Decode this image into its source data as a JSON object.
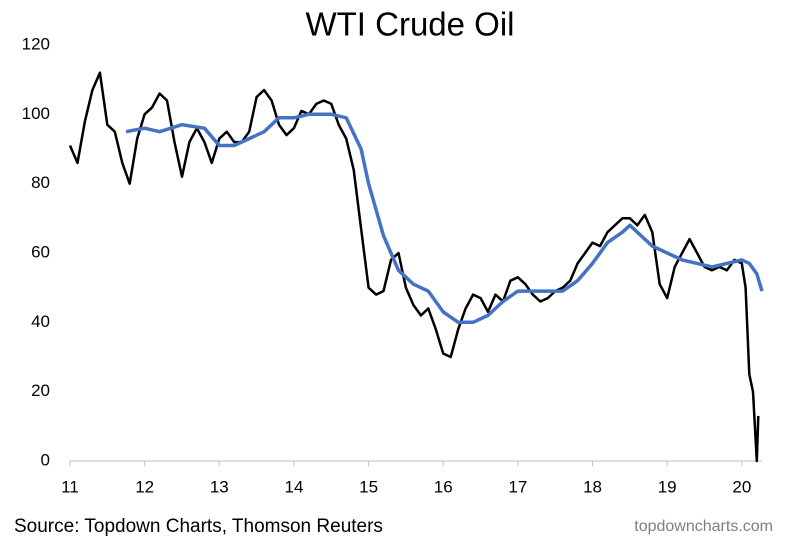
{
  "chart_data": {
    "type": "line",
    "title": "WTI Crude Oil",
    "source": "Source: Topdown Charts, Thomson Reuters",
    "watermark": "topdowncharts.com",
    "xlim": [
      11,
      20.27
    ],
    "xticks": [
      11,
      12,
      13,
      14,
      15,
      16,
      17,
      18,
      19,
      20
    ],
    "ylim": [
      0,
      120
    ],
    "yticks": [
      0,
      20,
      40,
      60,
      80,
      100,
      120
    ],
    "grid": false,
    "series": [
      {
        "color": "#000000",
        "x": [
          11.0,
          11.1,
          11.2,
          11.3,
          11.4,
          11.5,
          11.6,
          11.7,
          11.8,
          11.9,
          12.0,
          12.1,
          12.2,
          12.3,
          12.4,
          12.5,
          12.6,
          12.7,
          12.8,
          12.9,
          13.0,
          13.1,
          13.2,
          13.3,
          13.4,
          13.5,
          13.6,
          13.7,
          13.8,
          13.9,
          14.0,
          14.1,
          14.2,
          14.3,
          14.4,
          14.5,
          14.6,
          14.7,
          14.8,
          14.9,
          15.0,
          15.1,
          15.2,
          15.3,
          15.4,
          15.5,
          15.6,
          15.7,
          15.8,
          15.9,
          16.0,
          16.1,
          16.2,
          16.3,
          16.4,
          16.5,
          16.6,
          16.7,
          16.8,
          16.9,
          17.0,
          17.1,
          17.2,
          17.3,
          17.4,
          17.5,
          17.6,
          17.7,
          17.8,
          17.9,
          18.0,
          18.1,
          18.2,
          18.3,
          18.4,
          18.5,
          18.6,
          18.7,
          18.8,
          18.9,
          19.0,
          19.1,
          19.2,
          19.3,
          19.4,
          19.5,
          19.6,
          19.7,
          19.8,
          19.9,
          20.0,
          20.05,
          20.1,
          20.15,
          20.2,
          20.22
        ],
        "values": [
          91,
          86,
          98,
          107,
          112,
          97,
          95,
          86,
          80,
          93,
          100,
          102,
          106,
          104,
          92,
          82,
          92,
          96,
          92,
          86,
          93,
          95,
          92,
          92,
          95,
          105,
          107,
          104,
          97,
          94,
          96,
          101,
          100,
          103,
          104,
          103,
          97,
          93,
          84,
          67,
          50,
          48,
          49,
          58,
          60,
          50,
          45,
          42,
          44,
          38,
          31,
          30,
          38,
          44,
          48,
          47,
          43,
          48,
          46,
          52,
          53,
          51,
          48,
          46,
          47,
          49,
          50,
          52,
          57,
          60,
          63,
          62,
          66,
          68,
          70,
          70,
          68,
          71,
          66,
          51,
          47,
          56,
          60,
          64,
          60,
          56,
          55,
          56,
          55,
          58,
          57,
          50,
          25,
          20,
          0,
          13
        ]
      },
      {
        "color": "#4472c4",
        "x": [
          11.75,
          12.0,
          12.2,
          12.5,
          12.8,
          13.0,
          13.2,
          13.4,
          13.6,
          13.8,
          14.0,
          14.2,
          14.5,
          14.7,
          14.9,
          15.0,
          15.2,
          15.4,
          15.6,
          15.8,
          16.0,
          16.2,
          16.4,
          16.6,
          16.8,
          17.0,
          17.3,
          17.6,
          17.8,
          18.0,
          18.2,
          18.4,
          18.5,
          18.6,
          18.8,
          19.0,
          19.2,
          19.4,
          19.6,
          19.8,
          20.0,
          20.1,
          20.2,
          20.27
        ],
        "values": [
          95,
          96,
          95,
          97,
          96,
          91,
          91,
          93,
          95,
          99,
          99,
          100,
          100,
          99,
          90,
          80,
          65,
          55,
          51,
          49,
          43,
          40,
          40,
          42,
          46,
          49,
          49,
          49,
          52,
          57,
          63,
          66,
          68,
          66,
          62,
          60,
          58,
          57,
          56,
          57,
          58,
          57,
          54,
          49
        ]
      }
    ]
  }
}
